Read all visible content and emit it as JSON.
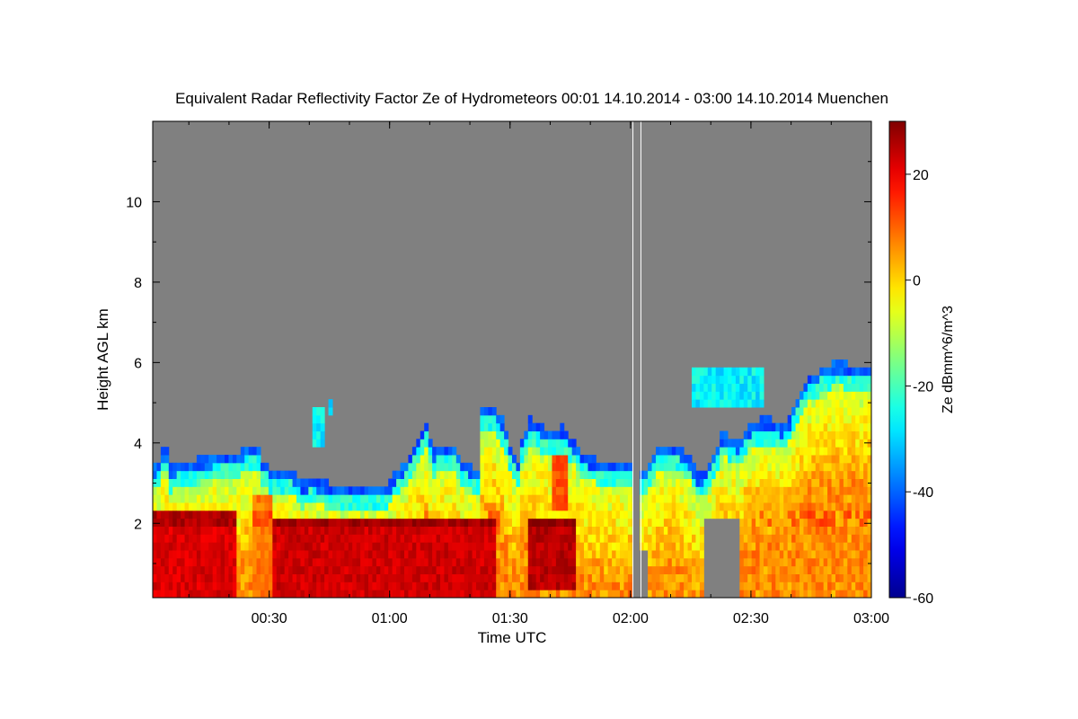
{
  "chart_data": {
    "type": "heatmap",
    "title": "Equivalent Radar Reflectivity Factor Ze of Hydrometeors   00:01 14.10.2014 - 03:00 14.10.2014 Muenchen",
    "xlabel": "Time UTC",
    "ylabel": "Height AGL km",
    "x_range_minutes": [
      1,
      180
    ],
    "x_ticks": [
      {
        "minutes": 30,
        "label": "00:30"
      },
      {
        "minutes": 60,
        "label": "01:00"
      },
      {
        "minutes": 90,
        "label": "01:30"
      },
      {
        "minutes": 120,
        "label": "02:00"
      },
      {
        "minutes": 150,
        "label": "02:30"
      },
      {
        "minutes": 180,
        "label": "03:00"
      }
    ],
    "y_range_km": [
      0.15,
      12
    ],
    "y_ticks": [
      {
        "value": 2,
        "label": "2"
      },
      {
        "value": 4,
        "label": "4"
      },
      {
        "value": 6,
        "label": "6"
      },
      {
        "value": 8,
        "label": "8"
      },
      {
        "value": 10,
        "label": "10"
      }
    ],
    "colorbar": {
      "label": "Ze dBmm^6/m^3",
      "range": [
        -60,
        30
      ],
      "ticks": [
        {
          "value": 20,
          "label": "20"
        },
        {
          "value": 0,
          "label": "0"
        },
        {
          "value": -20,
          "label": "-20"
        },
        {
          "value": -40,
          "label": "-40"
        },
        {
          "value": -60,
          "label": "-60"
        }
      ]
    },
    "background_color": "#808080",
    "melting_layer_height_km": 2.1,
    "data_gaps_minutes": [
      [
        120.6,
        122.6
      ]
    ],
    "cloud_top_km": [
      [
        1,
        3.4
      ],
      [
        3,
        3.5
      ],
      [
        4,
        4.2
      ],
      [
        5,
        3.4
      ],
      [
        8,
        3.5
      ],
      [
        12,
        3.6
      ],
      [
        18,
        3.7
      ],
      [
        23,
        3.7
      ],
      [
        24,
        4.0
      ],
      [
        26,
        3.8
      ],
      [
        27,
        4.0
      ],
      [
        28,
        3.6
      ],
      [
        30,
        3.4
      ],
      [
        33,
        3.4
      ],
      [
        36,
        3.3
      ],
      [
        38,
        3.0
      ],
      [
        40,
        3.1
      ],
      [
        45,
        3.0
      ],
      [
        50,
        2.9
      ],
      [
        55,
        3.0
      ],
      [
        60,
        3.0
      ],
      [
        62,
        3.4
      ],
      [
        64,
        3.5
      ],
      [
        66,
        3.9
      ],
      [
        69,
        4.6
      ],
      [
        71,
        3.8
      ],
      [
        74,
        4.0
      ],
      [
        76,
        3.9
      ],
      [
        78,
        3.6
      ],
      [
        82,
        3.3
      ],
      [
        83,
        4.9
      ],
      [
        86,
        4.9
      ],
      [
        88,
        4.6
      ],
      [
        90,
        4.0
      ],
      [
        92,
        3.5
      ],
      [
        93,
        4.2
      ],
      [
        95,
        4.6
      ],
      [
        98,
        4.4
      ],
      [
        101,
        4.3
      ],
      [
        103,
        4.4
      ],
      [
        106,
        4.0
      ],
      [
        108,
        3.7
      ],
      [
        112,
        3.6
      ],
      [
        114,
        3.5
      ],
      [
        118,
        3.6
      ],
      [
        120.5,
        3.6
      ],
      [
        122.8,
        3.3
      ],
      [
        125,
        3.5
      ],
      [
        127,
        3.9
      ],
      [
        130,
        4.0
      ],
      [
        133,
        3.8
      ],
      [
        135,
        3.6
      ],
      [
        137,
        3.2
      ],
      [
        139,
        3.3
      ],
      [
        141,
        3.8
      ],
      [
        143,
        4.3
      ],
      [
        145,
        4.1
      ],
      [
        147,
        4.0
      ],
      [
        150,
        4.5
      ],
      [
        152,
        4.6
      ],
      [
        155,
        4.6
      ],
      [
        158,
        4.4
      ],
      [
        160,
        4.7
      ],
      [
        162,
        5.2
      ],
      [
        164,
        5.6
      ],
      [
        167,
        5.8
      ],
      [
        170,
        6.0
      ],
      [
        173,
        6.0
      ],
      [
        176,
        5.9
      ],
      [
        180,
        5.9
      ]
    ],
    "cloud_gaps": [
      {
        "x": [
          138,
          147
        ],
        "y": [
          0.1,
          2.2
        ]
      },
      {
        "x": [
          122.5,
          124.2
        ],
        "y": [
          0.1,
          1.3
        ]
      }
    ],
    "upper_cloud_fragments": [
      {
        "x": [
          40.5,
          43.5
        ],
        "y": [
          4.0,
          4.9
        ]
      },
      {
        "x": [
          44.5,
          46.2
        ],
        "y": [
          4.6,
          5.0
        ]
      },
      {
        "x": [
          135,
          153
        ],
        "y": [
          4.9,
          5.8
        ]
      }
    ],
    "high_reflectivity_cores": [
      {
        "x": [
          1,
          22
        ],
        "y": [
          0.15,
          2.4
        ],
        "dbz": 22
      },
      {
        "x": [
          31,
          87
        ],
        "y": [
          0.15,
          2.1
        ],
        "dbz": 23
      },
      {
        "x": [
          94,
          106
        ],
        "y": [
          0.3,
          2.2
        ],
        "dbz": 25
      },
      {
        "x": [
          100,
          104
        ],
        "y": [
          2.4,
          4.0
        ],
        "dbz": 12
      },
      {
        "x": [
          26,
          31
        ],
        "y": [
          0.2,
          2.8
        ],
        "dbz": 8
      },
      {
        "x": [
          148,
          180
        ],
        "y": [
          0.2,
          3.0
        ],
        "dbz": 2
      }
    ]
  }
}
